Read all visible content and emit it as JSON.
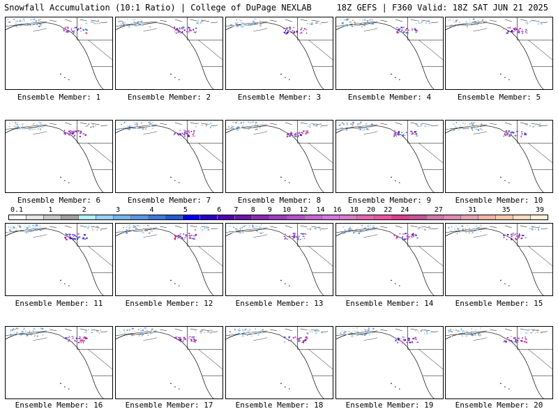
{
  "header": {
    "title_left": "Snowfall Accumulation (10:1 Ratio) | College of DuPage NEXLAB",
    "title_right": "18Z GEFS | F360 Valid: 18Z SAT JUN 21 2025"
  },
  "members": [
    {
      "label": "Ensemble Member: 1"
    },
    {
      "label": "Ensemble Member: 2"
    },
    {
      "label": "Ensemble Member: 3"
    },
    {
      "label": "Ensemble Member: 4"
    },
    {
      "label": "Ensemble Member: 5"
    },
    {
      "label": "Ensemble Member: 6"
    },
    {
      "label": "Ensemble Member: 7"
    },
    {
      "label": "Ensemble Member: 8"
    },
    {
      "label": "Ensemble Member: 9"
    },
    {
      "label": "Ensemble Member: 10"
    },
    {
      "label": "Ensemble Member: 11"
    },
    {
      "label": "Ensemble Member: 12"
    },
    {
      "label": "Ensemble Member: 13"
    },
    {
      "label": "Ensemble Member: 14"
    },
    {
      "label": "Ensemble Member: 15"
    },
    {
      "label": "Ensemble Member: 16"
    },
    {
      "label": "Ensemble Member: 17"
    },
    {
      "label": "Ensemble Member: 18"
    },
    {
      "label": "Ensemble Member: 19"
    },
    {
      "label": "Ensemble Member: 20"
    }
  ],
  "legend": {
    "labels": [
      "0.1",
      "1",
      "2",
      "3",
      "4",
      "5",
      "6",
      "7",
      "8",
      "9",
      "10",
      "12",
      "14",
      "16",
      "18",
      "20",
      "22",
      "24",
      "27",
      "31",
      "35",
      "39"
    ],
    "colors": [
      "#ffffff",
      "#e6e6e6",
      "#c8c8c8",
      "#a0a0a0",
      "#b4f0fa",
      "#96d2fa",
      "#78b4f0",
      "#5a96e6",
      "#3c78dc",
      "#1e5ad2",
      "#0000ff",
      "#2800c8",
      "#5000b4",
      "#6e14aa",
      "#8c28b4",
      "#a03cbe",
      "#b450c8",
      "#c864d2",
      "#d278dc",
      "#dc78c8",
      "#e664b4",
      "#f050a0",
      "#dc3c8c",
      "#c8509b",
      "#d278aa",
      "#dc8cb9",
      "#e6a0b4",
      "#f0b4a0",
      "#f5c8aa",
      "#fadcbe",
      "#fff0dc"
    ]
  }
}
